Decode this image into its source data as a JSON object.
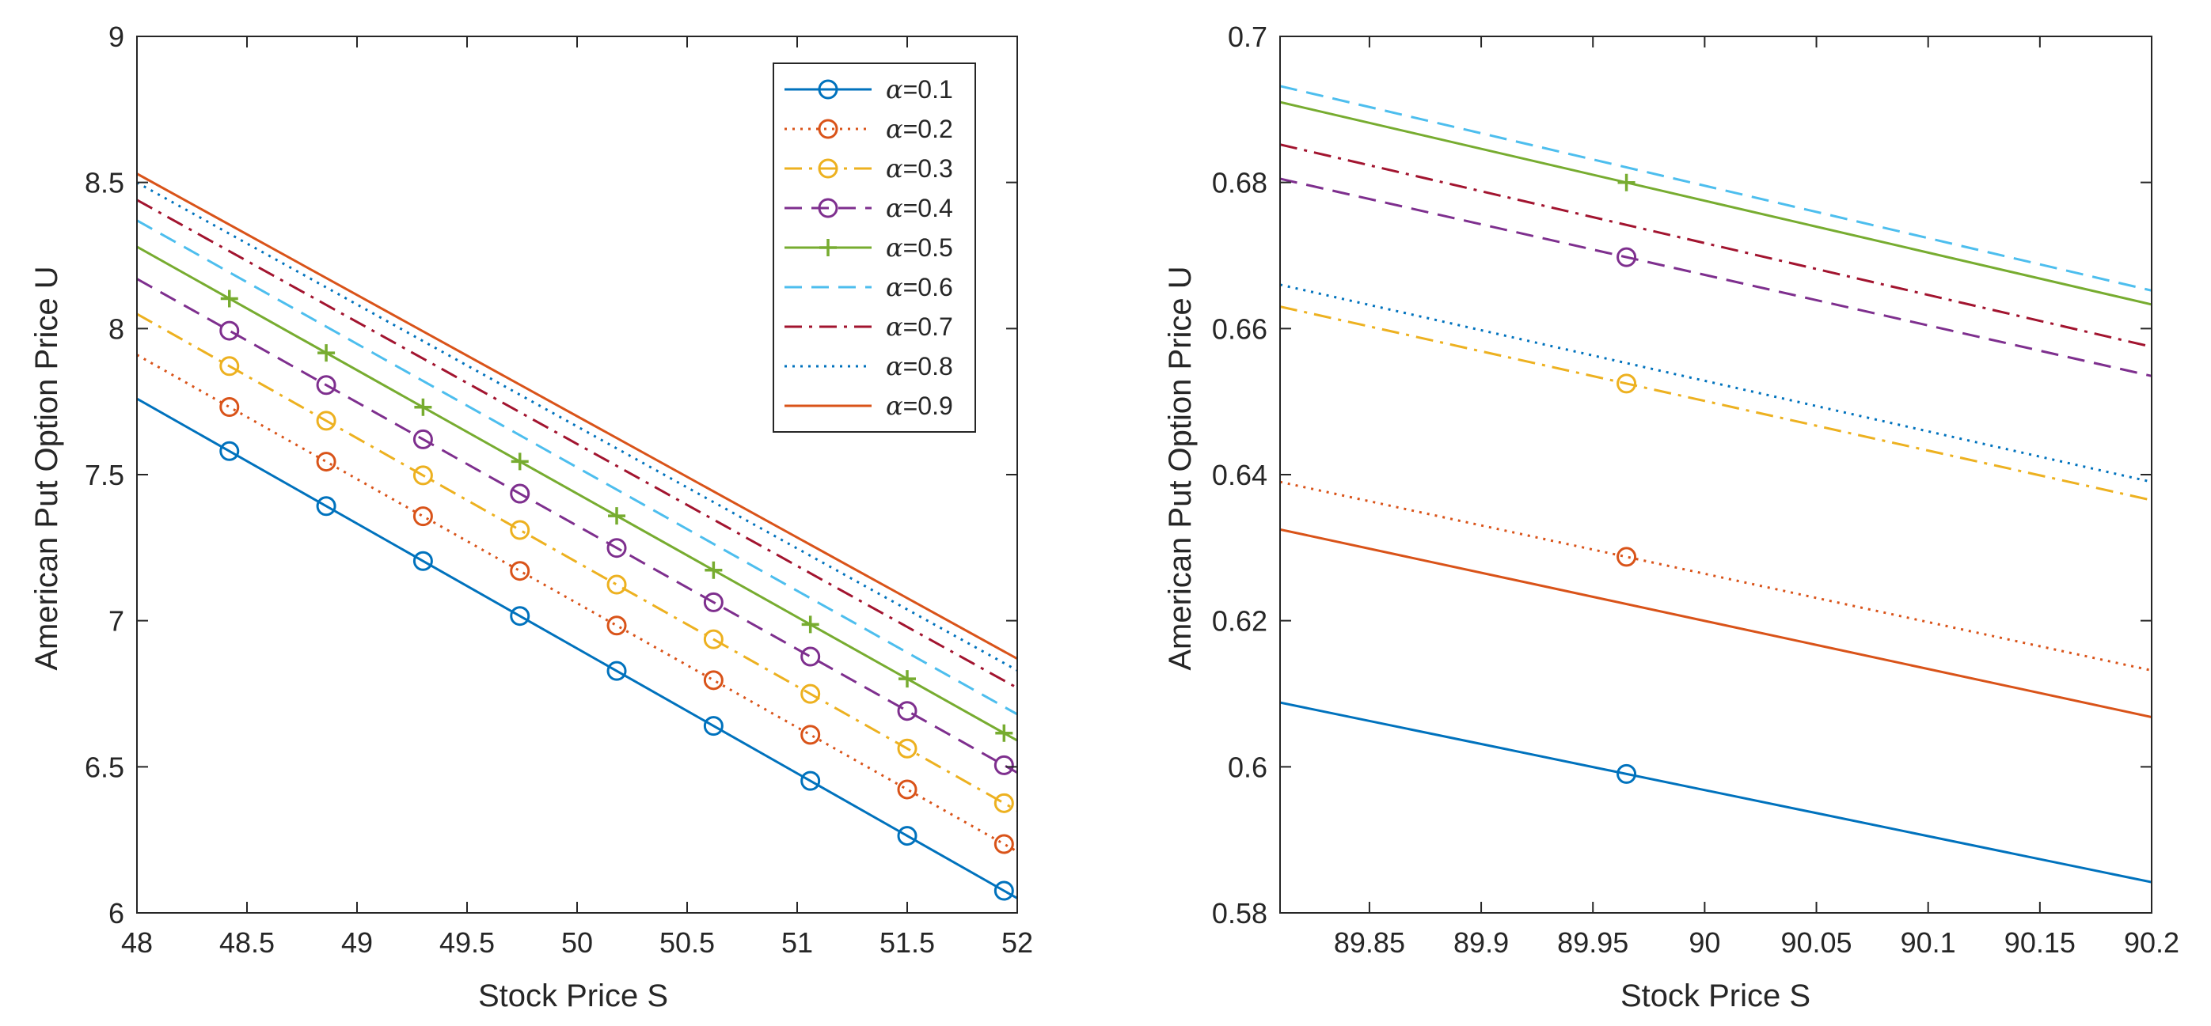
{
  "chart_data": [
    {
      "type": "line",
      "xlabel": "Stock Price S",
      "ylabel": "American  Put Option Price U",
      "xlim": [
        48,
        52
      ],
      "ylim": [
        6,
        9
      ],
      "xticks": [
        48,
        48.5,
        49,
        49.5,
        50,
        50.5,
        51,
        51.5,
        52
      ],
      "xtick_labels": [
        "48",
        "48.5",
        "49",
        "49.5",
        "50",
        "50.5",
        "51",
        "51.5",
        "52"
      ],
      "yticks": [
        6,
        6.5,
        7,
        7.5,
        8,
        8.5,
        9
      ],
      "ytick_labels": [
        "6",
        "6.5",
        "7",
        "7.5",
        "8",
        "8.5",
        "9"
      ],
      "legend_position": "top-right",
      "x": [
        48,
        52
      ],
      "marker_x": [
        48.42,
        48.86,
        49.3,
        49.74,
        50.18,
        50.62,
        51.06,
        51.5,
        51.94
      ],
      "series": [
        {
          "name": "α=0.1",
          "values": [
            7.76,
            6.05
          ],
          "color": "#0072BD",
          "line_style": "solid",
          "marker": "circle"
        },
        {
          "name": "α=0.2",
          "values": [
            7.91,
            6.21
          ],
          "color": "#D95319",
          "line_style": "dotted",
          "marker": "circle"
        },
        {
          "name": "α=0.3",
          "values": [
            8.05,
            6.35
          ],
          "color": "#EDB120",
          "line_style": "dashdot",
          "marker": "circle"
        },
        {
          "name": "α=0.4",
          "values": [
            8.17,
            6.48
          ],
          "color": "#7E2F8E",
          "line_style": "dashed",
          "marker": "circle"
        },
        {
          "name": "α=0.5",
          "values": [
            8.28,
            6.59
          ],
          "color": "#77AC30",
          "line_style": "solid",
          "marker": "plus"
        },
        {
          "name": "α=0.6",
          "values": [
            8.37,
            6.68
          ],
          "color": "#4DBEEE",
          "line_style": "dashed",
          "marker": "none"
        },
        {
          "name": "α=0.7",
          "values": [
            8.44,
            6.77
          ],
          "color": "#A2142F",
          "line_style": "dashdot",
          "marker": "none"
        },
        {
          "name": "α=0.8",
          "values": [
            8.5,
            6.83
          ],
          "color": "#0072BD",
          "line_style": "dotted",
          "marker": "none"
        },
        {
          "name": "α=0.9",
          "values": [
            8.53,
            6.87
          ],
          "color": "#D95319",
          "line_style": "solid",
          "marker": "none"
        }
      ]
    },
    {
      "type": "line",
      "xlabel": "Stock Price S",
      "ylabel": "American  Put Option Price U",
      "xlim": [
        89.81,
        90.2
      ],
      "ylim": [
        0.58,
        0.7
      ],
      "xticks": [
        89.85,
        89.9,
        89.95,
        90,
        90.05,
        90.1,
        90.15,
        90.2
      ],
      "xtick_labels": [
        "89.85",
        "89.9",
        "89.95",
        "90",
        "90.05",
        "90.1",
        "90.15",
        "90.2"
      ],
      "yticks": [
        0.58,
        0.6,
        0.62,
        0.64,
        0.66,
        0.68,
        0.7
      ],
      "ytick_labels": [
        "0.58",
        "0.6",
        "0.62",
        "0.64",
        "0.66",
        "0.68",
        "0.7"
      ],
      "x": [
        89.81,
        90.2
      ],
      "marker_x": [
        89.965
      ],
      "series": [
        {
          "name": "α=0.1",
          "values": [
            0.6088,
            0.5842
          ],
          "color": "#0072BD",
          "line_style": "solid",
          "marker": "circle"
        },
        {
          "name": "α=0.2",
          "values": [
            0.639,
            0.6132
          ],
          "color": "#D95319",
          "line_style": "dotted",
          "marker": "circle"
        },
        {
          "name": "α=0.3",
          "values": [
            0.663,
            0.6365
          ],
          "color": "#EDB120",
          "line_style": "dashdot",
          "marker": "circle"
        },
        {
          "name": "α=0.4",
          "values": [
            0.6805,
            0.6535
          ],
          "color": "#7E2F8E",
          "line_style": "dashed",
          "marker": "circle"
        },
        {
          "name": "α=0.5",
          "values": [
            0.691,
            0.6633
          ],
          "color": "#77AC30",
          "line_style": "solid",
          "marker": "plus"
        },
        {
          "name": "α=0.6",
          "values": [
            0.6932,
            0.6652
          ],
          "color": "#4DBEEE",
          "line_style": "dashed",
          "marker": "none"
        },
        {
          "name": "α=0.7",
          "values": [
            0.6852,
            0.6575
          ],
          "color": "#A2142F",
          "line_style": "dashdot",
          "marker": "none"
        },
        {
          "name": "α=0.8",
          "values": [
            0.666,
            0.639
          ],
          "color": "#0072BD",
          "line_style": "dotted",
          "marker": "none"
        },
        {
          "name": "α=0.9",
          "values": [
            0.6325,
            0.6068
          ],
          "color": "#D95319",
          "line_style": "solid",
          "marker": "none"
        }
      ]
    }
  ]
}
